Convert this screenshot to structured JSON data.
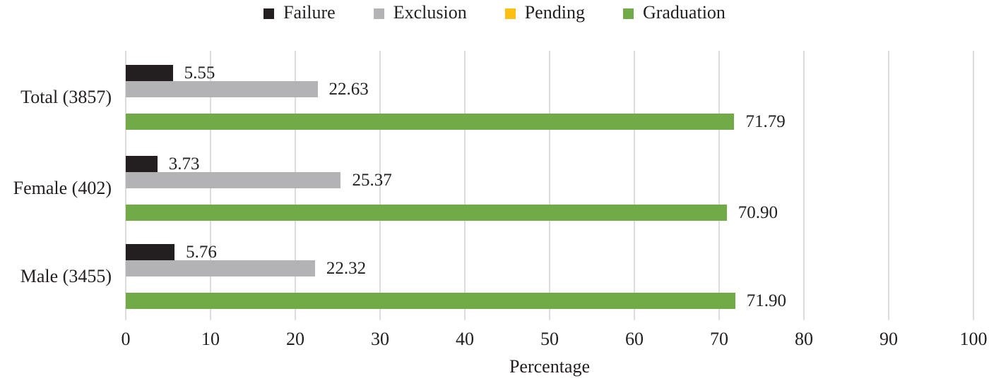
{
  "legend": {
    "items": [
      {
        "label": "Failure",
        "color": "#231f20"
      },
      {
        "label": "Exclusion",
        "color": "#b3b3b5"
      },
      {
        "label": "Pending",
        "color": "#fdbf11"
      },
      {
        "label": "Graduation",
        "color": "#70ab47"
      }
    ]
  },
  "chart_data": {
    "type": "bar",
    "orientation": "horizontal",
    "title": "",
    "xlabel": "Percentage",
    "ylabel": "",
    "xlim": [
      0,
      100
    ],
    "xticks": [
      0,
      10,
      20,
      30,
      40,
      50,
      60,
      70,
      80,
      90,
      100
    ],
    "grid": true,
    "legend_position": "top",
    "value_labels": true,
    "categories": [
      "Total (3857)",
      "Female (402)",
      "Male (3455)"
    ],
    "series": [
      {
        "name": "Failure",
        "color": "#231f20",
        "values": [
          5.55,
          3.73,
          5.76
        ]
      },
      {
        "name": "Exclusion",
        "color": "#b3b3b5",
        "values": [
          22.63,
          25.37,
          22.32
        ]
      },
      {
        "name": "Pending",
        "color": "#fdbf11",
        "values": [
          0,
          0,
          0
        ]
      },
      {
        "name": "Graduation",
        "color": "#70ab47",
        "values": [
          71.79,
          70.9,
          71.9
        ]
      }
    ]
  },
  "colors": {
    "gridline": "#dcdcdc",
    "text": "#231f20",
    "background": "#ffffff"
  }
}
